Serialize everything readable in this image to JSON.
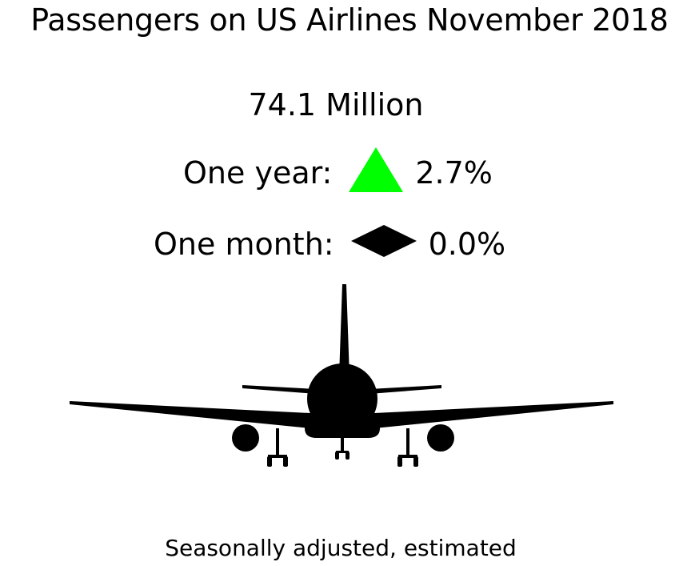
{
  "title": "Passengers on US Airlines November 2018",
  "headline_value": "74.1 Million",
  "one_year": {
    "label": "One year:",
    "change": "2.7%",
    "indicator_icon": "up-triangle-icon",
    "indicator_color": "#00ff00"
  },
  "one_month": {
    "label": "One month:",
    "change": "0.0%",
    "indicator_icon": "diamond-icon",
    "indicator_color": "#000000"
  },
  "illustration_icon": "airplane-icon",
  "footnote": "Seasonally adjusted, estimated"
}
